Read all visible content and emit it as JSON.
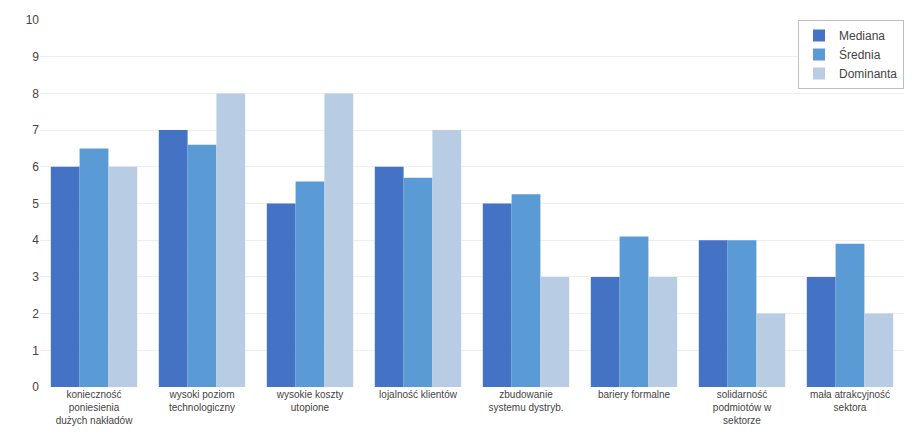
{
  "chart_data": {
    "type": "bar",
    "categories": [
      "konieczność\nponiesienia\ndużych nakładów",
      "wysoki poziom\ntechnologiczny",
      "wysokie koszty\nutopione",
      "lojalność klientów",
      "zbudowanie\nsystemu dystryb.",
      "bariery formalne",
      "solidarność\npodmiotów w\nsektorze",
      "mała atrakcyjność\nsektora"
    ],
    "series": [
      {
        "name": "Mediana",
        "color": "#4472C4",
        "values": [
          6,
          7,
          5,
          6,
          5,
          3,
          4,
          3
        ]
      },
      {
        "name": "Średnia",
        "color": "#5B9BD5",
        "values": [
          6.5,
          6.6,
          5.6,
          5.7,
          5.25,
          4.1,
          4.0,
          3.9
        ]
      },
      {
        "name": "Dominanta",
        "color": "#B8CCE4",
        "values": [
          6,
          8,
          8,
          7,
          3,
          3,
          2,
          2
        ]
      }
    ],
    "ylim": [
      0,
      10
    ],
    "yticks": [
      0,
      1,
      2,
      3,
      4,
      5,
      6,
      7,
      8,
      9,
      10
    ],
    "grid": true,
    "legend": "upper right"
  }
}
